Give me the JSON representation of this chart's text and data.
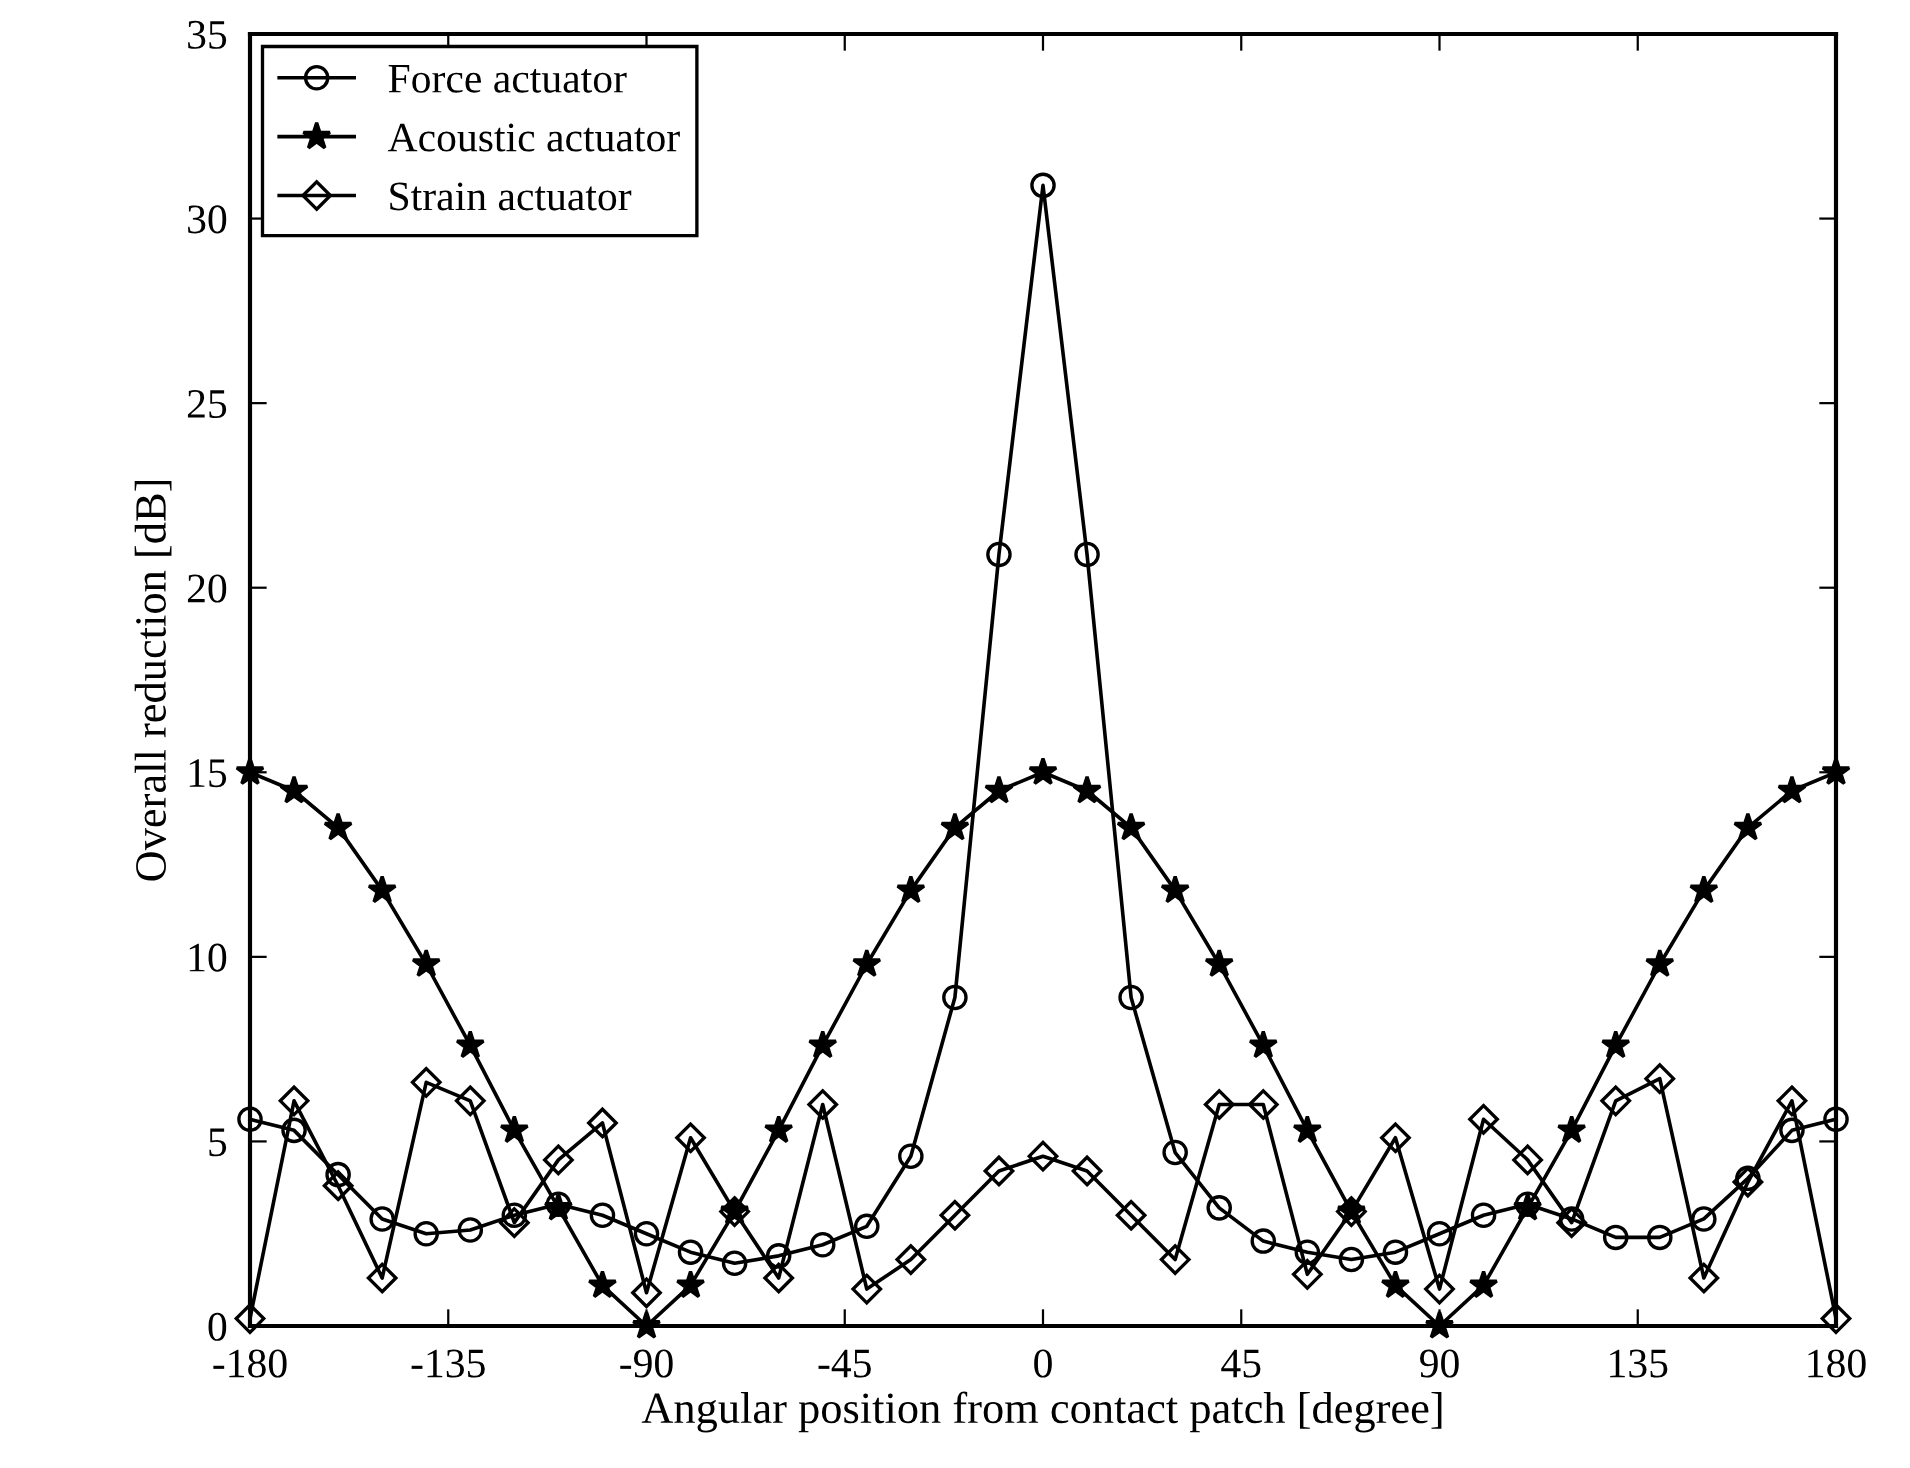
{
  "chart_data": {
    "type": "line",
    "xlabel": "Angular position from contact patch [degree]",
    "ylabel": "Overall reduction [dB]",
    "x": [
      -180,
      -170,
      -160,
      -150,
      -140,
      -130,
      -120,
      -110,
      -100,
      -90,
      -80,
      -70,
      -60,
      -50,
      -40,
      -30,
      -20,
      -10,
      0,
      10,
      20,
      30,
      40,
      50,
      60,
      70,
      80,
      90,
      100,
      110,
      120,
      130,
      140,
      150,
      160,
      170,
      180
    ],
    "series": [
      {
        "name": "Force actuator",
        "color": "#000000",
        "marker": "circle",
        "values": [
          5.6,
          5.3,
          4.1,
          2.9,
          2.5,
          2.6,
          3.0,
          3.3,
          3.0,
          2.5,
          2.0,
          1.7,
          1.9,
          2.2,
          2.7,
          4.6,
          8.9,
          20.9,
          30.9,
          20.9,
          8.9,
          4.7,
          3.2,
          2.3,
          2.0,
          1.8,
          2.0,
          2.5,
          3.0,
          3.3,
          2.9,
          2.4,
          2.4,
          2.9,
          4.0,
          5.3,
          5.6
        ]
      },
      {
        "name": "Acoustic actuator",
        "color": "#000000",
        "marker": "star",
        "values": [
          15,
          14.5,
          13.5,
          11.8,
          9.8,
          7.6,
          5.3,
          3.2,
          1.1,
          0,
          1.1,
          3.1,
          5.3,
          7.6,
          9.8,
          11.8,
          13.5,
          14.5,
          15,
          14.5,
          13.5,
          11.8,
          9.8,
          7.6,
          5.3,
          3.1,
          1.1,
          0,
          1.1,
          3.2,
          5.3,
          7.6,
          9.8,
          11.8,
          13.5,
          14.5,
          15
        ]
      },
      {
        "name": "Strain actuator",
        "color": "#000000",
        "marker": "diamond",
        "values": [
          0.2,
          6.1,
          3.8,
          1.3,
          6.6,
          6.1,
          2.8,
          4.5,
          5.5,
          0.9,
          5.1,
          3.1,
          1.3,
          6.0,
          1.0,
          1.8,
          3.0,
          4.2,
          4.6,
          4.2,
          3.0,
          1.8,
          6.0,
          6.0,
          1.4,
          3.1,
          5.1,
          1.0,
          5.6,
          4.5,
          2.8,
          6.1,
          6.7,
          1.3,
          3.9,
          6.1,
          0.2
        ]
      }
    ],
    "xlim": [
      -180,
      180
    ],
    "xticks": [
      -180,
      -135,
      -90,
      -45,
      0,
      45,
      90,
      135,
      180
    ],
    "ylim": [
      0,
      35
    ],
    "yticks": [
      0,
      5,
      10,
      15,
      20,
      25,
      30,
      35
    ],
    "grid": false,
    "legend": "top left",
    "line_style": "solid"
  }
}
